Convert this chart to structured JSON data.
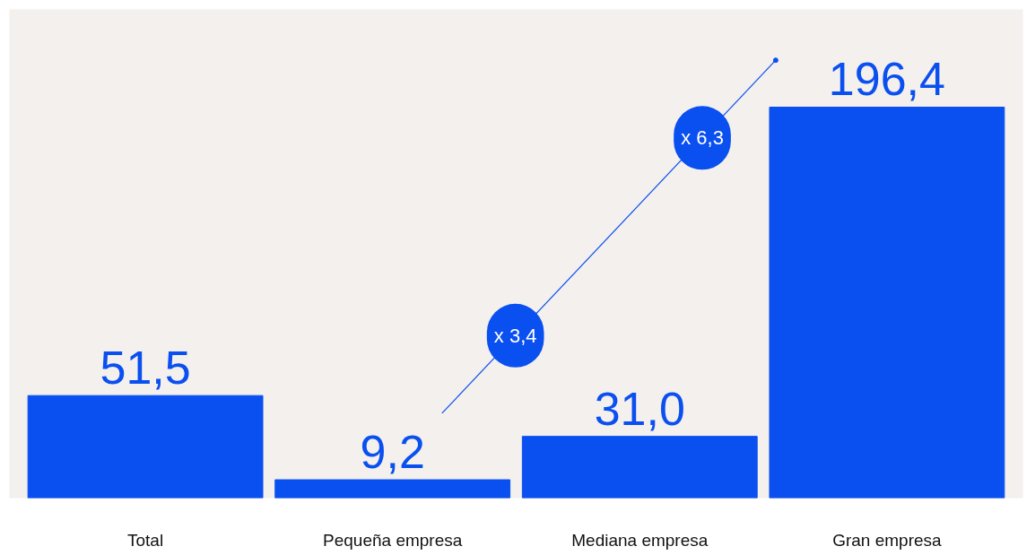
{
  "chart_data": {
    "type": "bar",
    "categories": [
      "Total",
      "Pequeña empresa",
      "Mediana empresa",
      "Gran empresa"
    ],
    "values": [
      51.5,
      9.2,
      31.0,
      196.4
    ],
    "value_labels": [
      "51,5",
      "9,2",
      "31,0",
      "196,4"
    ],
    "color": "#0a4ff0",
    "annotations": [
      "x 3,4",
      "x 6,3"
    ],
    "grid": false
  }
}
